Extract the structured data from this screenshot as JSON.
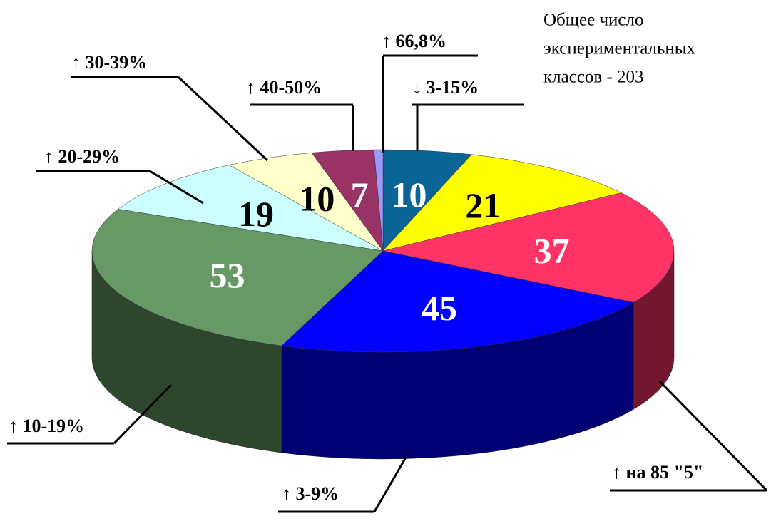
{
  "chart_data": {
    "type": "pie3d",
    "annotation": [
      "Общее число",
      "экспериментальных",
      "классов - 203"
    ],
    "categories": [
      "↓ 3-15%",
      null,
      "↑ на 85 \"5\"",
      "↑ 3-9%",
      "↑ 10-19%",
      "↑ 20-29%",
      "↑ 30-39%",
      "↑ 40-50%",
      "↑ 66,8%"
    ],
    "values": [
      10,
      21,
      37,
      45,
      53,
      19,
      10,
      7,
      1
    ],
    "value_labels": [
      "10",
      "21",
      "37",
      "45",
      "53",
      "19",
      "10",
      "7",
      null
    ],
    "colors": [
      "#0a6496",
      "#ffff00",
      "#ff3366",
      "#0000ff",
      "#669966",
      "#ccffff",
      "#ffffcc",
      "#993366",
      "#9999ff"
    ]
  }
}
